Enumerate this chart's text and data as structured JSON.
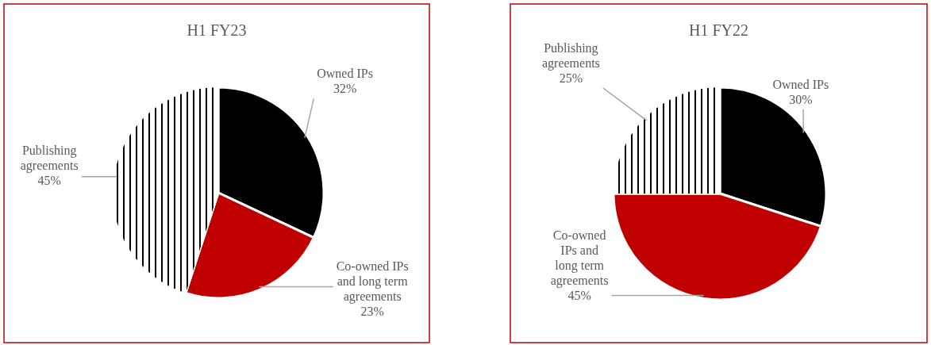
{
  "chart_data": [
    {
      "type": "pie",
      "title": "H1 FY23",
      "categories": [
        "Owned IPs",
        "Co-owned IPs and long term agreements",
        "Publishing agreements"
      ],
      "values": [
        32,
        23,
        45
      ],
      "value_labels": [
        "32%",
        "23%",
        "45%"
      ],
      "colors": [
        "#000000",
        "#c00000",
        "#ffffff"
      ]
    },
    {
      "type": "pie",
      "title": "H1 FY22",
      "categories": [
        "Owned IPs",
        "Co-owned IPs and long term agreements",
        "Publishing agreements"
      ],
      "values": [
        30,
        45,
        25
      ],
      "value_labels": [
        "30%",
        "45%",
        "25%"
      ],
      "colors": [
        "#000000",
        "#c00000",
        "#ffffff"
      ]
    }
  ]
}
